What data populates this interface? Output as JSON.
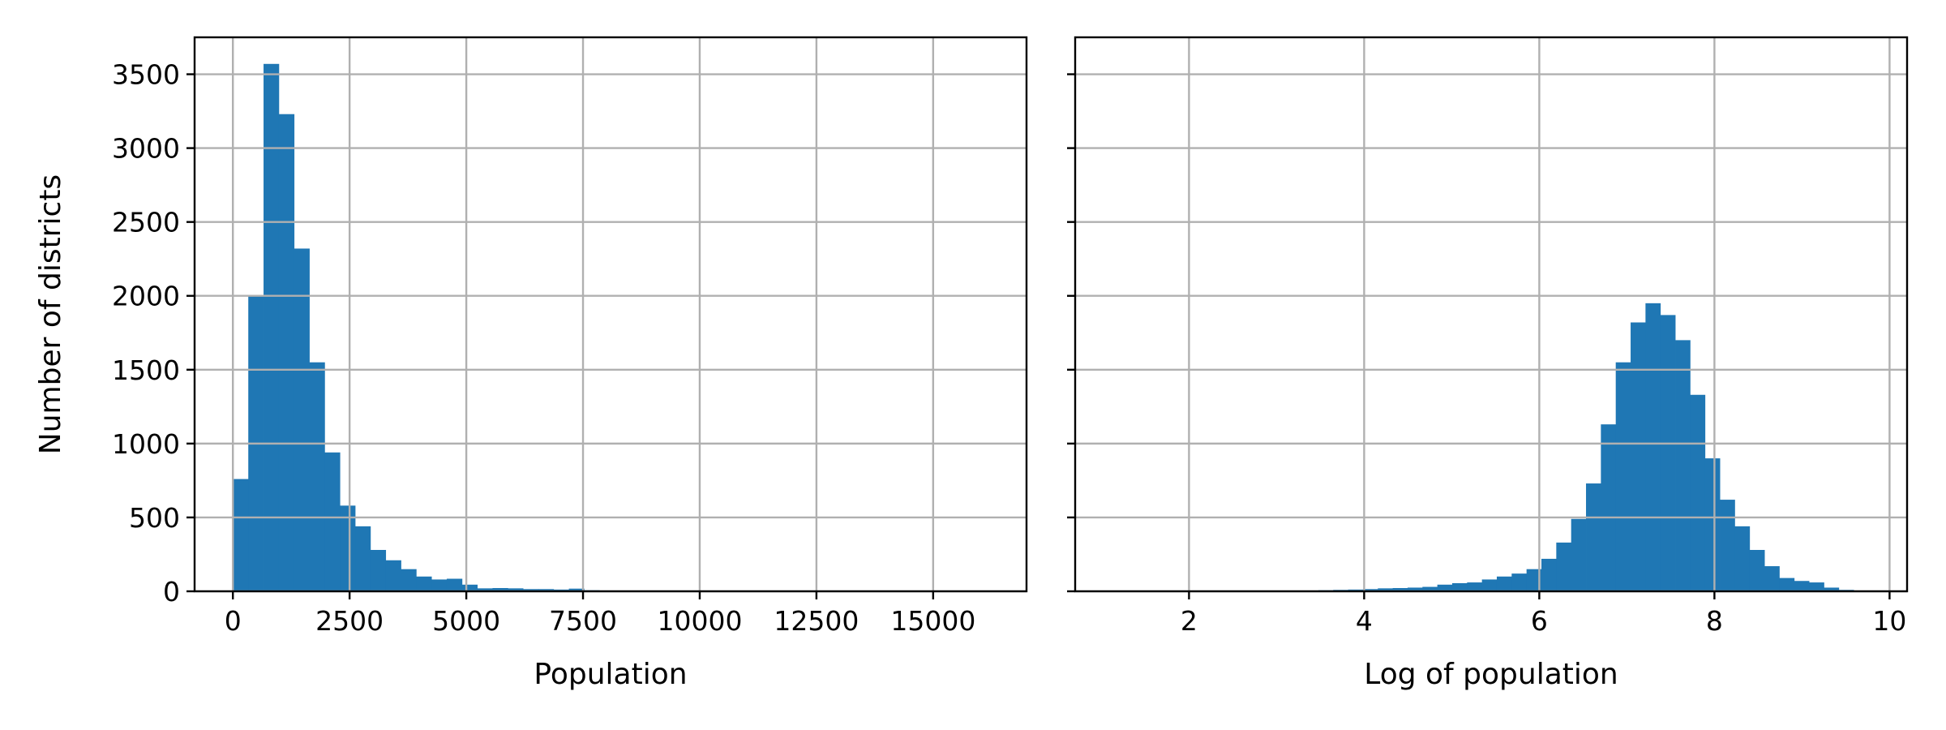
{
  "chart_data": [
    {
      "type": "bar",
      "histogram": true,
      "xlabel": "Population",
      "ylabel": "Number of districts",
      "xlim": [
        -820,
        17000
      ],
      "ylim": [
        0,
        3750
      ],
      "xticks": [
        0,
        2500,
        5000,
        7500,
        10000,
        12500,
        15000
      ],
      "xtick_labels": [
        "0",
        "2500",
        "5000",
        "7500",
        "10000",
        "12500",
        "15000"
      ],
      "yticks": [
        0,
        500,
        1000,
        1500,
        2000,
        2500,
        3000,
        3500
      ],
      "ytick_labels": [
        "0",
        "500",
        "1000",
        "1500",
        "2000",
        "2500",
        "3000",
        "3500"
      ],
      "grid": true,
      "color": "#1f77b4",
      "bin_start": 3,
      "bin_width": 327,
      "values": [
        760,
        2000,
        3570,
        3230,
        2320,
        1550,
        940,
        580,
        440,
        280,
        210,
        150,
        100,
        80,
        85,
        45,
        20,
        22,
        20,
        15,
        15,
        12,
        18,
        8,
        5,
        5,
        5,
        3,
        3,
        2,
        2,
        2,
        2,
        2,
        2,
        1,
        1,
        1,
        1,
        1,
        1,
        1,
        1,
        1,
        1,
        1,
        1,
        1,
        1,
        1
      ]
    },
    {
      "type": "bar",
      "histogram": true,
      "xlabel": "Log of population",
      "ylabel": "",
      "xlim": [
        0.7,
        10.2
      ],
      "ylim": [
        0,
        3750
      ],
      "xticks": [
        2,
        4,
        6,
        8,
        10
      ],
      "xtick_labels": [
        "2",
        "4",
        "6",
        "8",
        "10"
      ],
      "yticks": [
        0,
        500,
        1000,
        1500,
        2000,
        2500,
        3000,
        3500
      ],
      "ytick_labels": [
        "",
        "",
        "",
        "",
        "",
        "",
        "",
        ""
      ],
      "grid": true,
      "color": "#1f77b4",
      "bin_start": 1.1,
      "bin_width": 0.1698,
      "values": [
        1,
        1,
        1,
        1,
        1,
        1,
        1,
        1,
        1,
        1,
        2,
        2,
        3,
        5,
        8,
        10,
        12,
        15,
        20,
        22,
        25,
        30,
        45,
        55,
        60,
        80,
        100,
        120,
        150,
        220,
        330,
        490,
        730,
        1130,
        1550,
        1820,
        1950,
        1870,
        1700,
        1330,
        900,
        620,
        440,
        280,
        170,
        90,
        70,
        60,
        25,
        10
      ]
    }
  ]
}
